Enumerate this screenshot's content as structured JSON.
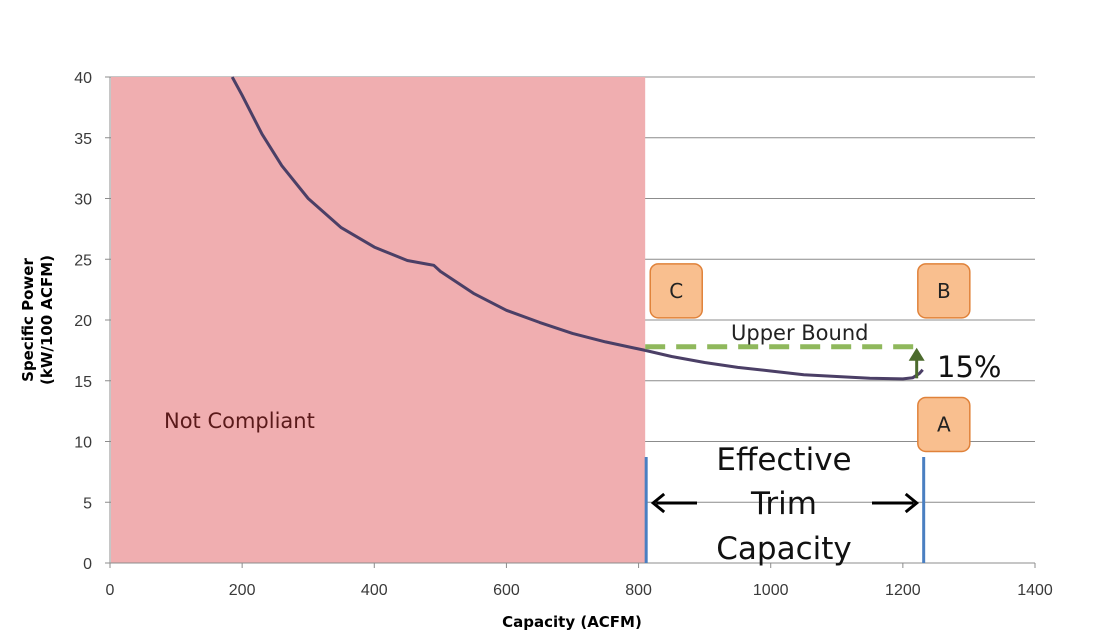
{
  "chart_data": {
    "type": "line",
    "xlabel": "Capacity (ACFM)",
    "ylabel_line1": "Specific Power",
    "ylabel_line2": "(kW/100 ACFM)",
    "xlim": [
      0,
      1400
    ],
    "ylim": [
      0,
      40
    ],
    "x_ticks": [
      0,
      200,
      400,
      600,
      800,
      1000,
      1200,
      1400
    ],
    "y_ticks": [
      0,
      5,
      10,
      15,
      20,
      25,
      30,
      35,
      40
    ],
    "x_tick_labels": [
      "0",
      "200",
      "400",
      "600",
      "800",
      "1000",
      "1200",
      "1400"
    ],
    "y_tick_labels": [
      "0",
      "5",
      "10",
      "15",
      "20",
      "25",
      "30",
      "35",
      "40"
    ],
    "grid": "horizontal",
    "series": [
      {
        "color": "#4b3f66",
        "x": [
          185,
          200,
          230,
          260,
          300,
          350,
          400,
          450,
          480,
          490,
          500,
          550,
          600,
          650,
          700,
          750,
          810,
          850,
          900,
          950,
          1000,
          1050,
          1100,
          1150,
          1200,
          1215,
          1225,
          1230
        ],
        "y": [
          40.3,
          38.5,
          35.3,
          32.7,
          30.0,
          27.6,
          26.0,
          24.9,
          24.6,
          24.5,
          24.0,
          22.2,
          20.8,
          19.8,
          18.9,
          18.2,
          17.5,
          17.0,
          16.5,
          16.1,
          15.8,
          15.5,
          15.35,
          15.2,
          15.15,
          15.25,
          15.6,
          15.9
        ]
      }
    ],
    "non_compliant_region": {
      "x_from": 0,
      "x_to": 810,
      "label": "Not Compliant",
      "color": "#f0aeb0"
    },
    "upper_bound": {
      "label": "Upper Bound",
      "y": 17.8,
      "x_from": 810,
      "x_to": 1230,
      "color": "#8fb85c"
    },
    "increase": {
      "label": "15%",
      "color": "#4c6b2d"
    },
    "markers": [
      {
        "label": "C",
        "x": 857,
        "y": 22.4
      },
      {
        "label": "B",
        "x": 1262,
        "y": 22.4
      },
      {
        "label": "A",
        "x": 1262,
        "y": 11.4
      }
    ],
    "effective_trim": {
      "x_from": 810,
      "x_to": 1230,
      "line1": "Effective",
      "line2": "Trim",
      "line3": "Capacity",
      "line_color": "#4a7fc1"
    }
  }
}
